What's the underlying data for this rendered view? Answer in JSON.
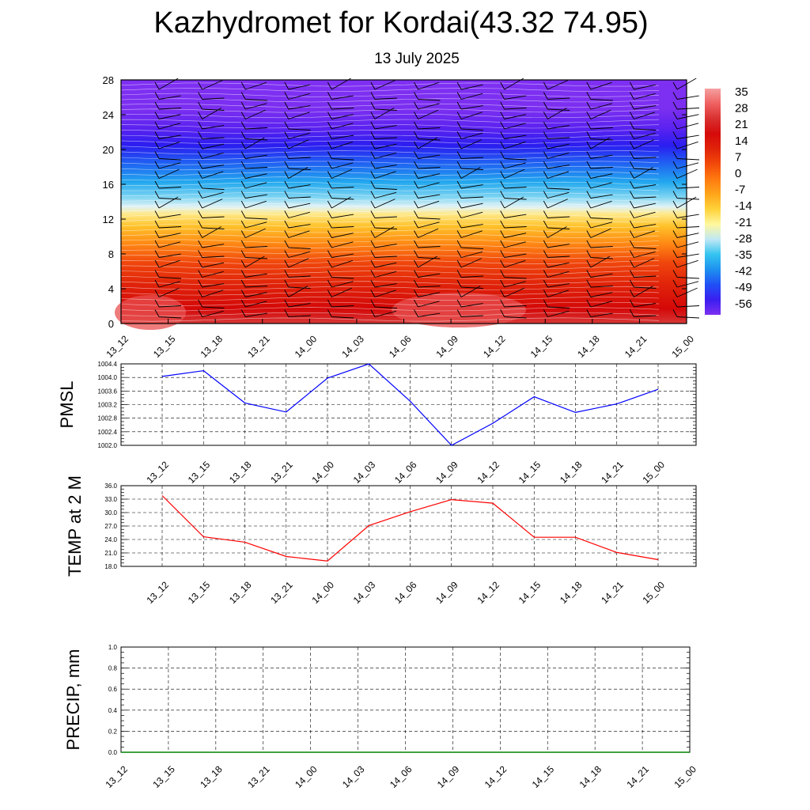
{
  "title": "Kazhydromet for Kordai(43.32 74.95)",
  "subtitle": "13 July 2025",
  "chart_data": [
    {
      "type": "heatmap",
      "description_kind": "time-height cross-section with wind barbs",
      "x_ticks": [
        "13_12",
        "13_15",
        "13_18",
        "13_21",
        "14_00",
        "14_03",
        "14_06",
        "14_09",
        "14_12",
        "14_15",
        "14_18",
        "14_21",
        "15_00"
      ],
      "y_ticks": [
        "0",
        "4",
        "8",
        "12",
        "16",
        "20",
        "24",
        "28"
      ],
      "ylim": [
        0,
        28
      ],
      "colorbar_labels": [
        "35",
        "28",
        "21",
        "14",
        "7",
        "0",
        "-7",
        "-14",
        "-21",
        "-28",
        "-35",
        "-42",
        "-49",
        "-56"
      ],
      "colormap": [
        "#7b2ff0",
        "#3a1ef0",
        "#2050f5",
        "#1e90f0",
        "#34c4f0",
        "#bfe8f5",
        "#fff8a0",
        "#ffd23a",
        "#ffa51a",
        "#ff7a10",
        "#f24a0a",
        "#e0230a",
        "#d50a0a",
        "#d83030",
        "#f06060",
        "#f4a0a0"
      ],
      "temperature_profile": [
        {
          "height": 0,
          "value": 30
        },
        {
          "height": 4,
          "value": 24
        },
        {
          "height": 8,
          "value": 14
        },
        {
          "height": 12,
          "value": -5
        },
        {
          "height": 16,
          "value": -25
        },
        {
          "height": 20,
          "value": -52
        },
        {
          "height": 24,
          "value": -58
        },
        {
          "height": 28,
          "value": -60
        }
      ]
    },
    {
      "type": "line",
      "ylabel": "PMSL",
      "x": [
        "13_12",
        "13_15",
        "13_18",
        "13_21",
        "14_00",
        "14_03",
        "14_06",
        "14_09",
        "14_12",
        "14_15",
        "14_18",
        "14_21",
        "15_00"
      ],
      "y_ticks": [
        "1002.0",
        "1002.4",
        "1002.8",
        "1003.2",
        "1003.6",
        "1004.0",
        "1004.4"
      ],
      "ylim": [
        1002.0,
        1004.4
      ],
      "color": "#0000ff",
      "values": [
        1004.03,
        1004.2,
        1003.25,
        1002.98,
        1003.98,
        1004.4,
        1003.3,
        1002.0,
        1002.65,
        1003.43,
        1002.97,
        1003.22,
        1003.65
      ]
    },
    {
      "type": "line",
      "ylabel": "TEMP at 2 M",
      "x": [
        "13_12",
        "13_15",
        "13_18",
        "13_21",
        "14_00",
        "14_03",
        "14_06",
        "14_09",
        "14_12",
        "14_15",
        "14_18",
        "14_21",
        "15_00"
      ],
      "y_ticks": [
        "18.0",
        "21.0",
        "24.0",
        "27.0",
        "30.0",
        "33.0",
        "36.0"
      ],
      "ylim": [
        18.0,
        36.0
      ],
      "color": "#ff0000",
      "values": [
        33.8,
        24.6,
        23.4,
        20.2,
        19.2,
        27.1,
        30.2,
        32.9,
        32.1,
        24.5,
        24.5,
        21.1,
        19.5
      ]
    },
    {
      "type": "line",
      "ylabel": "PRECIP, mm",
      "x": [
        "13_12",
        "13_15",
        "13_18",
        "13_21",
        "14_00",
        "14_03",
        "14_06",
        "14_09",
        "14_12",
        "14_15",
        "14_18",
        "14_21",
        "15_00"
      ],
      "y_ticks": [
        "0.0",
        "0.2",
        "0.4",
        "0.6",
        "0.8",
        "1.0"
      ],
      "ylim": [
        0.0,
        1.0
      ],
      "color": "#008000",
      "values": [
        0,
        0,
        0,
        0,
        0,
        0,
        0,
        0,
        0,
        0,
        0,
        0,
        0
      ]
    }
  ]
}
